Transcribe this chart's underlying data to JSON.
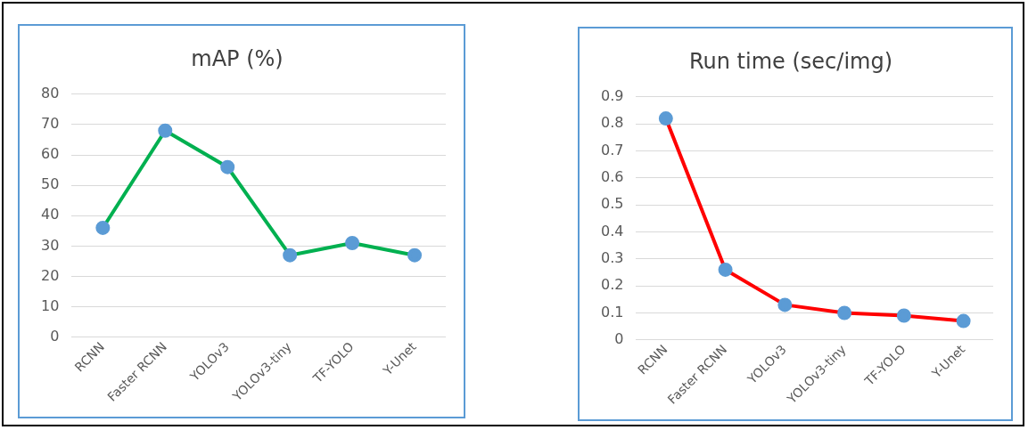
{
  "chart_data": [
    {
      "type": "line",
      "title": "mAP (%)",
      "categories": [
        "RCNN",
        "Faster RCNN",
        "YOLOv3",
        "YOLOv3-tiny",
        "TF-YOLO",
        "Y-Unet"
      ],
      "series": [
        {
          "color": "#00b050",
          "colors": [
            "#5b9bd5",
            "#5b9bd5",
            "#5b9bd5",
            "#5b9bd5",
            "#5b9bd5",
            "#5b9bd5"
          ],
          "values": [
            36,
            68,
            56,
            27,
            31,
            27
          ]
        }
      ],
      "ylim": [
        0,
        80
      ],
      "yticks": [
        0,
        10,
        20,
        30,
        40,
        50,
        60,
        70,
        80
      ],
      "grid": "y",
      "legend": false,
      "marker": "circle",
      "line_style": "solid"
    },
    {
      "type": "line",
      "title": "Run time (sec/img)",
      "categories": [
        "RCNN",
        "Faster RCNN",
        "YOLOv3",
        "YOLOv3-tiny",
        "TF-YOLO",
        "Y-Unet"
      ],
      "series": [
        {
          "color": "#ff0000",
          "colors": [
            "#5b9bd5",
            "#5b9bd5",
            "#5b9bd5",
            "#5b9bd5",
            "#5b9bd5",
            "#5b9bd5"
          ],
          "values": [
            0.82,
            0.26,
            0.13,
            0.1,
            0.09,
            0.07
          ]
        }
      ],
      "ylim": [
        0,
        0.9
      ],
      "yticks": [
        {
          "value": 0,
          "label": "0"
        },
        0.1,
        0.2,
        0.3,
        0.4,
        0.5,
        0.6,
        0.7,
        0.8,
        0.9
      ],
      "grid": "y",
      "legend": false,
      "marker": "circle",
      "line_style": "solid"
    }
  ]
}
